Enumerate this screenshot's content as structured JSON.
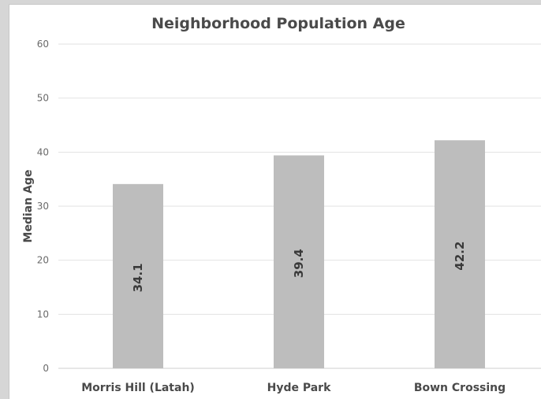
{
  "chart_data": {
    "type": "bar",
    "title": "Neighborhood Population Age",
    "xlabel": "",
    "ylabel": "Median Age",
    "categories": [
      "Morris Hill (Latah)",
      "Hyde Park",
      "Bown Crossing"
    ],
    "values": [
      34.1,
      39.4,
      42.2
    ],
    "data_labels": [
      "34.1",
      "39.4",
      "42.2"
    ],
    "ylim": [
      0,
      60
    ],
    "yticks": [
      0,
      10,
      20,
      30,
      40,
      50,
      60
    ],
    "grid": true,
    "legend": "none",
    "bar_color": "#bdbdbd"
  }
}
